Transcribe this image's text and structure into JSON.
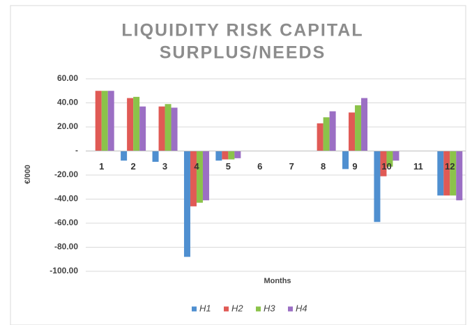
{
  "chart_data": {
    "type": "bar",
    "title": [
      "LIQUIDITY RISK CAPITAL",
      "SURPLUS/NEEDS"
    ],
    "x_label": "Months",
    "y_label": "€/000",
    "categories": [
      "1",
      "2",
      "3",
      "4",
      "5",
      "6",
      "7",
      "8",
      "9",
      "10",
      "11",
      "12"
    ],
    "series": [
      {
        "name": "H1",
        "color": "#4f8fd0",
        "values": [
          0,
          -8,
          -9,
          -88,
          -8,
          0,
          0,
          0,
          -15,
          -59,
          0,
          -37
        ]
      },
      {
        "name": "H2",
        "color": "#e05a55",
        "values": [
          50,
          44,
          37,
          -46,
          -7,
          0,
          0,
          23,
          32,
          -21,
          0,
          -37
        ]
      },
      {
        "name": "H3",
        "color": "#8bc34a",
        "values": [
          50,
          45,
          39,
          -43,
          -7,
          0,
          0,
          28,
          38,
          -13,
          0,
          -37
        ]
      },
      {
        "name": "H4",
        "color": "#9b6fc4",
        "values": [
          50,
          37,
          36,
          -41,
          -6,
          0,
          0,
          33,
          44,
          -8,
          0,
          -41
        ]
      }
    ],
    "ylim": [
      -100,
      60
    ],
    "yticks": [
      {
        "value": 60,
        "label": "60.00"
      },
      {
        "value": 40,
        "label": "40.00"
      },
      {
        "value": 20,
        "label": "20.00"
      },
      {
        "value": 0,
        "label": "-"
      },
      {
        "value": -20,
        "label": "-20.00"
      },
      {
        "value": -40,
        "label": "-40.00"
      },
      {
        "value": -60,
        "label": "-60.00"
      },
      {
        "value": -80,
        "label": "-80.00"
      },
      {
        "value": -100,
        "label": "-100.00"
      }
    ],
    "grid": true,
    "legend": "bottom"
  }
}
